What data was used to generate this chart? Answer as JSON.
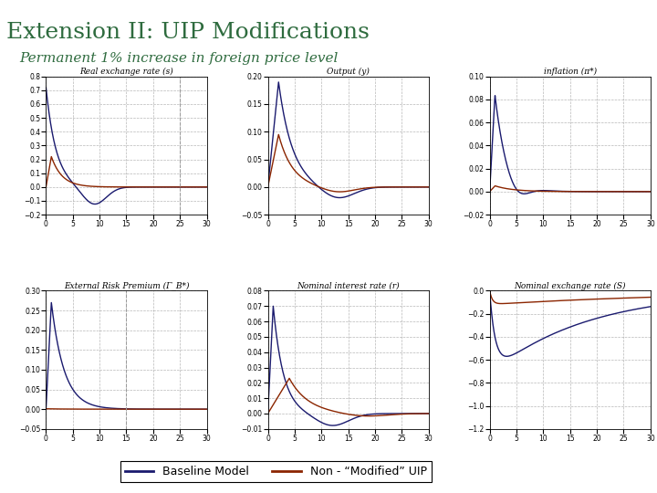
{
  "title": "Extension II: UIP Modifications",
  "subtitle": "Permanent 1% increase in foreign price level",
  "title_color": "#2E6B3E",
  "subtitle_color": "#2E6B3E",
  "background_color": "#FFFFFF",
  "line_color_baseline": "#1a1a6e",
  "line_color_modified": "#8B2500",
  "subplots": [
    {
      "title": "Real exchange rate (s)",
      "ylim": [
        -0.2,
        0.8
      ],
      "yticks": [
        -0.2,
        -0.1,
        0.0,
        0.1,
        0.2,
        0.3,
        0.4,
        0.5,
        0.6,
        0.7,
        0.8
      ],
      "xlim": [
        0,
        30
      ],
      "xticks": [
        0,
        5,
        10,
        15,
        20,
        25,
        30
      ],
      "vline_x": 25
    },
    {
      "title": "Output (y)",
      "ylim": [
        -0.05,
        0.2
      ],
      "yticks": [
        -0.05,
        0.0,
        0.05,
        0.1,
        0.15,
        0.2
      ],
      "xlim": [
        0,
        30
      ],
      "xticks": [
        0,
        5,
        10,
        15,
        20,
        25,
        30
      ],
      "vline_x": null
    },
    {
      "title": "inflation (π*)",
      "ylim": [
        -0.02,
        0.1
      ],
      "yticks": [
        -0.02,
        0.0,
        0.02,
        0.04,
        0.06,
        0.08,
        0.1
      ],
      "xlim": [
        0,
        30
      ],
      "xticks": [
        0,
        5,
        10,
        15,
        20,
        25,
        30
      ],
      "vline_x": null
    },
    {
      "title": "External Risk Premium (Γ_B*)",
      "ylim": [
        -0.05,
        0.3
      ],
      "yticks": [
        -0.05,
        0.0,
        0.05,
        0.1,
        0.15,
        0.2,
        0.25,
        0.3
      ],
      "xlim": [
        0,
        30
      ],
      "xticks": [
        0,
        5,
        10,
        15,
        20,
        25,
        30
      ],
      "vline_x": 15
    },
    {
      "title": "Nominal interest rate (r)",
      "ylim": [
        -0.01,
        0.08
      ],
      "yticks": [
        -0.01,
        0.0,
        0.01,
        0.02,
        0.03,
        0.04,
        0.05,
        0.06,
        0.07,
        0.08
      ],
      "xlim": [
        0,
        30
      ],
      "xticks": [
        0,
        5,
        10,
        15,
        20,
        25,
        30
      ],
      "vline_x": null
    },
    {
      "title": "Nominal exchange rate (S)",
      "ylim": [
        -1.2,
        0.0
      ],
      "yticks": [
        -1.2,
        -1.0,
        -0.8,
        -0.6,
        -0.4,
        -0.2,
        0.0
      ],
      "xlim": [
        0,
        30
      ],
      "xticks": [
        0,
        5,
        10,
        15,
        20,
        25,
        30
      ],
      "vline_x": null
    }
  ],
  "legend_baseline": "Baseline Model",
  "legend_modified": "Non - “Modified” UIP"
}
